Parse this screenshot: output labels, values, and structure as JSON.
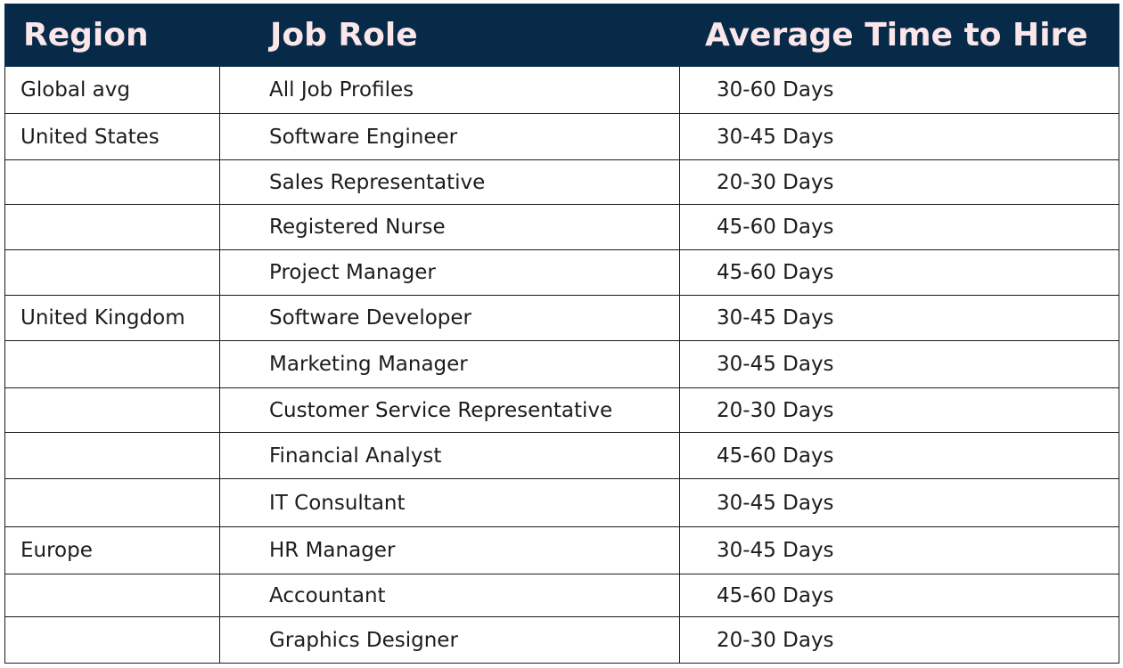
{
  "table": {
    "headers": {
      "region": "Region",
      "role": "Job Role",
      "time": "Average Time to Hire"
    },
    "rows": [
      {
        "region": "Global avg",
        "role": "All Job Profiles",
        "time": "30-60  Days"
      },
      {
        "region": "United States",
        "role": "Software Engineer",
        "time": "30-45  Days"
      },
      {
        "region": "",
        "role": "Sales Representative",
        "time": "20-30  Days"
      },
      {
        "region": "",
        "role": "Registered Nurse",
        "time": "45-60  Days"
      },
      {
        "region": "",
        "role": "Project Manager",
        "time": "45-60  Days"
      },
      {
        "region": "United Kingdom",
        "role": "Software Developer",
        "time": "30-45  Days"
      },
      {
        "region": "",
        "role": "Marketing Manager",
        "time": "30-45  Days"
      },
      {
        "region": "",
        "role": "Customer Service Representative",
        "time": "20-30  Days"
      },
      {
        "region": "",
        "role": "Financial Analyst",
        "time": "45-60  Days"
      },
      {
        "region": "",
        "role": "IT Consultant",
        "time": "30-45  Days"
      },
      {
        "region": "Europe",
        "role": "HR Manager",
        "time": "30-45  Days"
      },
      {
        "region": "",
        "role": "Accountant",
        "time": "45-60  Days"
      },
      {
        "region": "",
        "role": "Graphics Designer",
        "time": "20-30  Days"
      }
    ]
  },
  "colors": {
    "header_bg": "#062a48",
    "header_text": "#fbe6ea",
    "grid": "#1a1a1a",
    "text": "#1c1c1c"
  }
}
